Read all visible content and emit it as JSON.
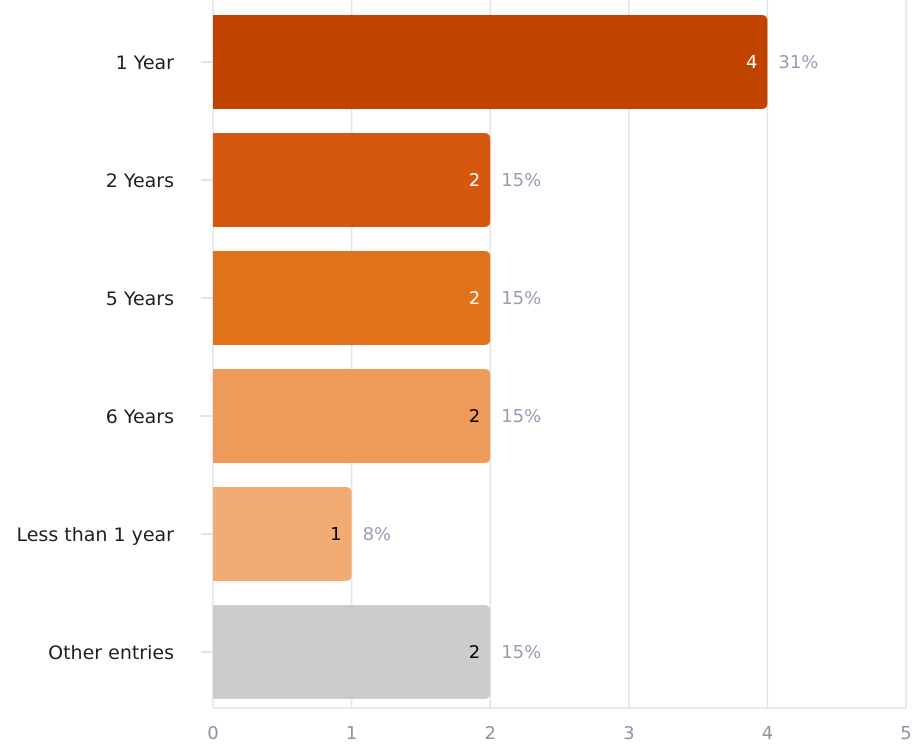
{
  "chart_data": {
    "type": "bar",
    "orientation": "horizontal",
    "categories": [
      "1 Year",
      "2 Years",
      "5 Years",
      "6 Years",
      "Less than 1 year",
      "Other entries"
    ],
    "values": [
      4,
      2,
      2,
      2,
      1,
      2
    ],
    "value_labels": [
      "4",
      "2",
      "2",
      "2",
      "1",
      "2"
    ],
    "percent_labels": [
      "31%",
      "15%",
      "15%",
      "15%",
      "8%",
      "15%"
    ],
    "bar_colors": [
      "#c04400",
      "#d6570f",
      "#e2721a",
      "#ee9a58",
      "#f3ab74",
      "#cccccc"
    ],
    "value_label_colors": [
      "#ffffff",
      "#ffffff",
      "#ffffff",
      "#000000",
      "#000000",
      "#000000"
    ],
    "xlim": [
      0,
      5
    ],
    "x_ticks": [
      0,
      1,
      2,
      3,
      4,
      5
    ],
    "x_tick_labels": [
      "0",
      "1",
      "2",
      "3",
      "4",
      "5"
    ],
    "title": "",
    "xlabel": "",
    "ylabel": "",
    "grid": "vertical",
    "legend": "none"
  }
}
